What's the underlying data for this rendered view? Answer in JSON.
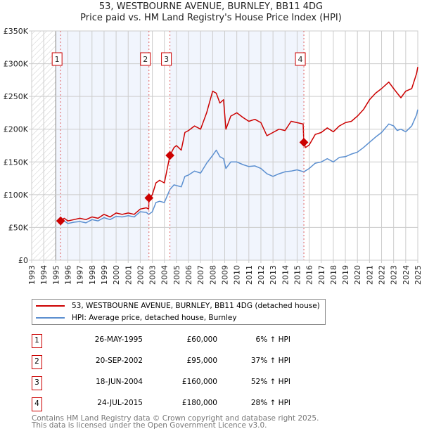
{
  "chart_data": {
    "type": "line",
    "title": "53, WESTBOURNE AVENUE, BURNLEY, BB11 4DG",
    "subtitle": "Price paid vs. HM Land Registry's House Price Index (HPI)",
    "xlim": [
      1993,
      2025
    ],
    "ylim": [
      0,
      350000
    ],
    "x_ticks": [
      "1993",
      "1994",
      "1995",
      "1996",
      "1997",
      "1998",
      "1999",
      "2000",
      "2001",
      "2002",
      "2003",
      "2004",
      "2005",
      "2006",
      "2007",
      "2008",
      "2009",
      "2010",
      "2011",
      "2012",
      "2013",
      "2014",
      "2015",
      "2016",
      "2017",
      "2018",
      "2019",
      "2020",
      "2021",
      "2022",
      "2023",
      "2024",
      "2025"
    ],
    "y_ticks": [
      {
        "v": 0,
        "label": "£0"
      },
      {
        "v": 50000,
        "label": "£50K"
      },
      {
        "v": 100000,
        "label": "£100K"
      },
      {
        "v": 150000,
        "label": "£150K"
      },
      {
        "v": 200000,
        "label": "£200K"
      },
      {
        "v": 250000,
        "label": "£250K"
      },
      {
        "v": 300000,
        "label": "£300K"
      },
      {
        "v": 350000,
        "label": "£350K"
      }
    ],
    "grid": true,
    "legend_placement": "below",
    "series": [
      {
        "name": "53, WESTBOURNE AVENUE, BURNLEY, BB11 4DG (detached house)",
        "color": "#cc0000",
        "x": [
          1995.4,
          1995.7,
          1996,
          1996.5,
          1997,
          1997.5,
          1998,
          1998.5,
          1999,
          1999.5,
          2000,
          2000.5,
          2001,
          2001.5,
          2002,
          2002.5,
          2002.7,
          2002.72,
          2003,
          2003.3,
          2003.6,
          2004,
          2004.46,
          2004.8,
          2005,
          2005.4,
          2005.7,
          2006,
          2006.5,
          2007,
          2007.5,
          2008,
          2008.3,
          2008.6,
          2008.9,
          2009.1,
          2009.5,
          2010,
          2010.5,
          2011,
          2011.5,
          2012,
          2012.5,
          2013,
          2013.5,
          2014,
          2014.5,
          2015,
          2015.5,
          2015.56,
          2015.7,
          2016,
          2016.5,
          2017,
          2017.5,
          2018,
          2018.5,
          2019,
          2019.5,
          2020,
          2020.5,
          2021,
          2021.5,
          2022,
          2022.6,
          2023,
          2023.3,
          2023.6,
          2024,
          2024.5,
          2024.9,
          2025
        ],
        "y": [
          60000,
          64000,
          60000,
          62000,
          64000,
          62000,
          66000,
          64000,
          70000,
          66000,
          72000,
          70000,
          72000,
          70000,
          78000,
          80000,
          78000,
          95000,
          100000,
          118000,
          122000,
          118000,
          160000,
          172000,
          175000,
          168000,
          195000,
          198000,
          205000,
          200000,
          225000,
          258000,
          255000,
          240000,
          245000,
          200000,
          220000,
          225000,
          218000,
          212000,
          215000,
          210000,
          190000,
          195000,
          200000,
          198000,
          212000,
          210000,
          208000,
          180000,
          172000,
          176000,
          192000,
          195000,
          202000,
          196000,
          205000,
          210000,
          212000,
          220000,
          230000,
          245000,
          255000,
          262000,
          272000,
          262000,
          255000,
          248000,
          258000,
          262000,
          285000,
          295000
        ]
      },
      {
        "name": "HPI: Average price, detached house, Burnley",
        "color": "#5b8fd0",
        "x": [
          1995.4,
          1995.7,
          1996,
          1996.5,
          1997,
          1997.5,
          1998,
          1998.5,
          1999,
          1999.5,
          2000,
          2000.5,
          2001,
          2001.5,
          2002,
          2002.5,
          2002.7,
          2003,
          2003.3,
          2003.6,
          2004,
          2004.46,
          2004.8,
          2005,
          2005.4,
          2005.7,
          2006,
          2006.5,
          2007,
          2007.5,
          2008,
          2008.3,
          2008.6,
          2008.9,
          2009.1,
          2009.5,
          2010,
          2010.5,
          2011,
          2011.5,
          2012,
          2012.5,
          2013,
          2013.5,
          2014,
          2014.5,
          2015,
          2015.56,
          2016,
          2016.5,
          2017,
          2017.5,
          2018,
          2018.5,
          2019,
          2019.5,
          2020,
          2020.5,
          2021,
          2021.5,
          2022,
          2022.6,
          2023,
          2023.3,
          2023.6,
          2024,
          2024.5,
          2024.9,
          2025
        ],
        "y": [
          58000,
          60000,
          56000,
          58000,
          59000,
          57000,
          62000,
          60000,
          65000,
          62000,
          67000,
          66000,
          68000,
          66000,
          74000,
          73000,
          70000,
          74000,
          88000,
          90000,
          88000,
          108000,
          115000,
          114000,
          112000,
          128000,
          130000,
          136000,
          133000,
          148000,
          160000,
          168000,
          158000,
          155000,
          140000,
          150000,
          150000,
          146000,
          143000,
          144000,
          140000,
          132000,
          128000,
          132000,
          135000,
          136000,
          138000,
          135000,
          140000,
          148000,
          150000,
          155000,
          150000,
          157000,
          158000,
          162000,
          165000,
          172000,
          180000,
          188000,
          195000,
          208000,
          205000,
          198000,
          200000,
          196000,
          205000,
          222000,
          230000
        ]
      }
    ],
    "sales": [
      {
        "id": "1",
        "x": 1995.4,
        "price": 60000,
        "date": "26-MAY-1995",
        "price_label": "£60,000",
        "hpi": "6% ↑ HPI"
      },
      {
        "id": "2",
        "x": 2002.72,
        "price": 95000,
        "date": "20-SEP-2002",
        "price_label": "£95,000",
        "hpi": "37% ↑ HPI"
      },
      {
        "id": "3",
        "x": 2004.46,
        "price": 160000,
        "date": "18-JUN-2004",
        "price_label": "£160,000",
        "hpi": "52% ↑ HPI"
      },
      {
        "id": "4",
        "x": 2015.56,
        "price": 180000,
        "date": "24-JUL-2015",
        "price_label": "£180,000",
        "hpi": "28% ↑ HPI"
      }
    ]
  },
  "footer": {
    "line1": "Contains HM Land Registry data © Crown copyright and database right 2025.",
    "line2": "This data is licensed under the Open Government Licence v3.0."
  }
}
